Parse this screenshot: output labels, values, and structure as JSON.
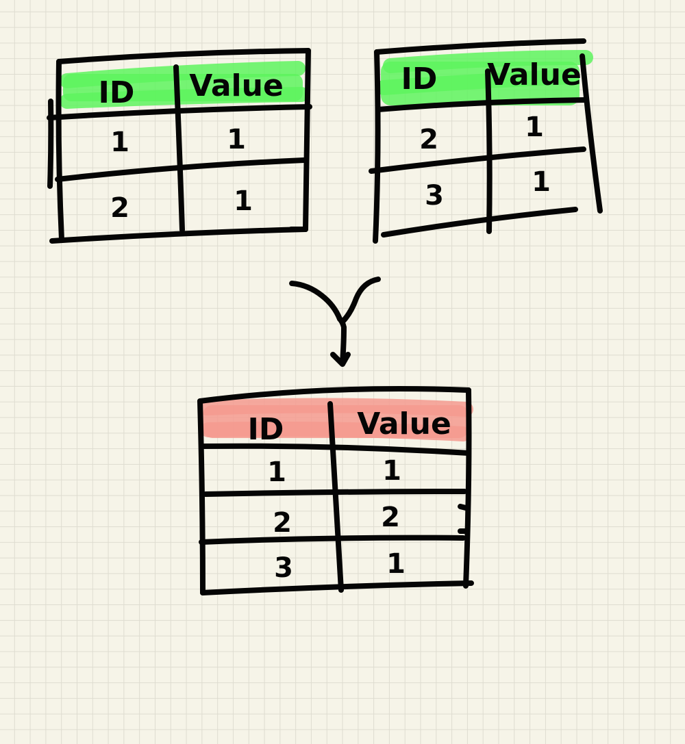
{
  "colors": {
    "input_header_highlight": "#5ef35e",
    "output_header_highlight": "#f59a8f",
    "ink": "#050505"
  },
  "tables": [
    {
      "role": "input",
      "columns": [
        "ID",
        "Value"
      ],
      "rows": [
        [
          "1",
          "1"
        ],
        [
          "2",
          "1"
        ]
      ]
    },
    {
      "role": "input",
      "columns": [
        "ID",
        "Value"
      ],
      "rows": [
        [
          "2",
          "1"
        ],
        [
          "3",
          "1"
        ]
      ]
    },
    {
      "role": "output",
      "columns": [
        "ID",
        "Value"
      ],
      "rows": [
        [
          "1",
          "1"
        ],
        [
          "2",
          "2"
        ],
        [
          "3",
          "1"
        ]
      ]
    }
  ],
  "icons": [
    "merge-arrow-icon"
  ]
}
